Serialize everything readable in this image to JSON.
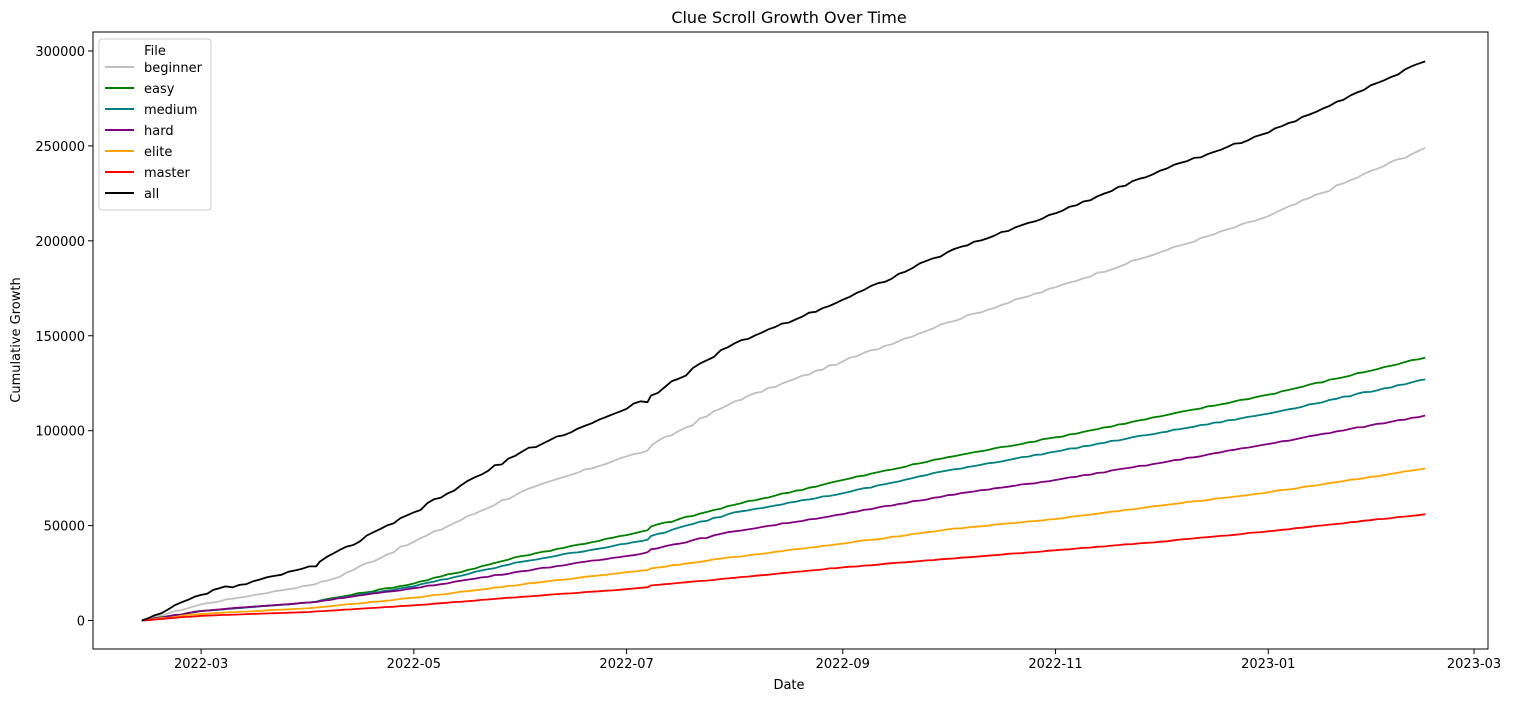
{
  "chart_data": {
    "type": "line",
    "title": "Clue Scroll Growth Over Time",
    "xlabel": "Date",
    "ylabel": "Cumulative Growth",
    "x_type": "date",
    "xlim": [
      "2022-01-29",
      "2023-03-05"
    ],
    "ylim": [
      -15000,
      310000
    ],
    "x_ticks": [
      "2022-03-01",
      "2022-05-01",
      "2022-07-01",
      "2022-09-01",
      "2022-11-01",
      "2023-01-01",
      "2023-03-01"
    ],
    "x_tick_labels": [
      "2022-03",
      "2022-05",
      "2022-07",
      "2022-09",
      "2022-11",
      "2023-01",
      "2023-03"
    ],
    "y_ticks": [
      0,
      50000,
      100000,
      150000,
      200000,
      250000,
      300000
    ],
    "y_tick_labels": [
      "0",
      "50000",
      "100000",
      "150000",
      "200000",
      "250000",
      "300000"
    ],
    "grid": false,
    "legend": {
      "title": "File",
      "position": "upper-left"
    },
    "series": [
      {
        "name": "beginner",
        "color": "#c0c0c0",
        "x": [
          "2022-02-12",
          "2022-03-01",
          "2022-03-10",
          "2022-04-01",
          "2022-04-08",
          "2022-05-01",
          "2022-06-01",
          "2022-07-01",
          "2022-07-07",
          "2022-07-08",
          "2022-08-01",
          "2022-09-01",
          "2022-10-01",
          "2022-11-01",
          "2022-12-01",
          "2023-01-01",
          "2023-02-15"
        ],
        "y": [
          0,
          8500,
          11500,
          18500,
          22000,
          41500,
          68000,
          86500,
          89500,
          92000,
          115500,
          136500,
          157000,
          175500,
          194000,
          213000,
          249000
        ]
      },
      {
        "name": "easy",
        "color": "#008000",
        "x": [
          "2022-02-12",
          "2022-03-01",
          "2022-04-01",
          "2022-05-01",
          "2022-06-01",
          "2022-07-01",
          "2022-07-07",
          "2022-07-08",
          "2022-08-01",
          "2022-09-01",
          "2022-10-01",
          "2022-11-01",
          "2022-12-01",
          "2023-01-01",
          "2023-02-15"
        ],
        "y": [
          0,
          5000,
          9500,
          19500,
          34000,
          45000,
          47500,
          49500,
          61000,
          74000,
          86000,
          96500,
          107500,
          119000,
          138500
        ]
      },
      {
        "name": "medium",
        "color": "#008080",
        "x": [
          "2022-02-12",
          "2022-03-01",
          "2022-04-01",
          "2022-05-01",
          "2022-06-01",
          "2022-07-01",
          "2022-07-07",
          "2022-07-08",
          "2022-08-01",
          "2022-09-01",
          "2022-10-01",
          "2022-11-01",
          "2022-12-01",
          "2023-01-01",
          "2023-02-15"
        ],
        "y": [
          0,
          5000,
          9500,
          18000,
          31000,
          40500,
          42500,
          44500,
          57000,
          67000,
          79000,
          89000,
          99000,
          109000,
          127000
        ]
      },
      {
        "name": "hard",
        "color": "#800080",
        "x": [
          "2022-02-12",
          "2022-03-01",
          "2022-03-10",
          "2022-04-01",
          "2022-05-01",
          "2022-06-01",
          "2022-07-01",
          "2022-07-07",
          "2022-07-08",
          "2022-08-01",
          "2022-09-01",
          "2022-10-01",
          "2022-11-01",
          "2022-12-01",
          "2023-01-01",
          "2023-02-15"
        ],
        "y": [
          0,
          5000,
          6500,
          9500,
          17000,
          26000,
          34000,
          36000,
          37500,
          47000,
          56000,
          66000,
          74000,
          83000,
          93000,
          108000
        ]
      },
      {
        "name": "elite",
        "color": "#ffa500",
        "x": [
          "2022-02-12",
          "2022-03-01",
          "2022-04-01",
          "2022-05-01",
          "2022-06-01",
          "2022-07-01",
          "2022-07-07",
          "2022-07-08",
          "2022-08-01",
          "2022-09-01",
          "2022-10-01",
          "2022-11-01",
          "2022-12-01",
          "2023-01-01",
          "2023-02-15"
        ],
        "y": [
          0,
          3500,
          6500,
          12000,
          19000,
          25500,
          26500,
          27500,
          33500,
          40500,
          48000,
          53500,
          60500,
          67500,
          80000
        ]
      },
      {
        "name": "master",
        "color": "#ff0000",
        "x": [
          "2022-02-12",
          "2022-03-01",
          "2022-04-01",
          "2022-05-01",
          "2022-06-01",
          "2022-07-01",
          "2022-07-07",
          "2022-07-08",
          "2022-08-01",
          "2022-09-01",
          "2022-10-01",
          "2022-11-01",
          "2022-12-01",
          "2023-01-01",
          "2023-02-15"
        ],
        "y": [
          0,
          2500,
          4500,
          8000,
          12500,
          16500,
          17500,
          18500,
          22500,
          28000,
          32500,
          37000,
          41500,
          47000,
          56000
        ]
      },
      {
        "name": "all",
        "color": "#000000",
        "x": [
          "2022-02-12",
          "2022-03-01",
          "2022-03-08",
          "2022-03-10",
          "2022-04-01",
          "2022-04-03",
          "2022-04-04",
          "2022-05-01",
          "2022-06-01",
          "2022-07-01",
          "2022-07-05",
          "2022-07-07",
          "2022-07-08",
          "2022-08-01",
          "2022-09-01",
          "2022-10-01",
          "2022-11-01",
          "2022-12-01",
          "2023-01-01",
          "2023-02-15"
        ],
        "y": [
          0,
          13500,
          18000,
          17500,
          28500,
          28500,
          31000,
          57000,
          89000,
          111500,
          115500,
          115000,
          118500,
          146000,
          169000,
          194000,
          214500,
          237000,
          257000,
          294500
        ]
      }
    ]
  }
}
